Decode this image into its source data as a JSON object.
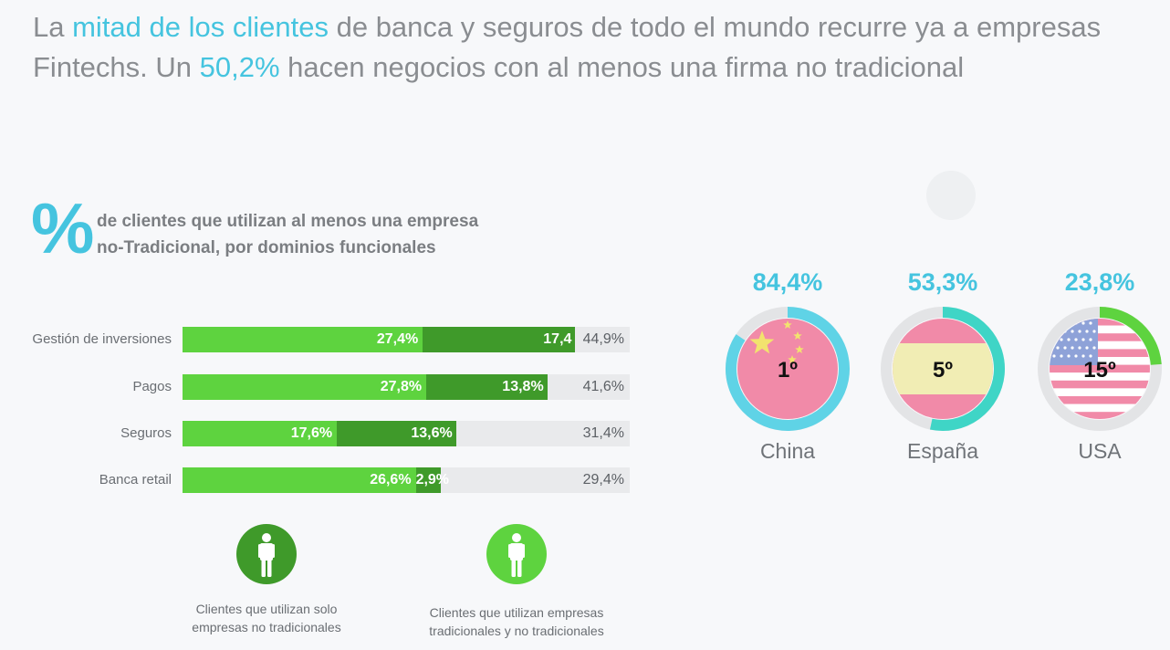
{
  "headline": {
    "part1": "La ",
    "highlight1": "mitad de los clientes",
    "part2": " de banca y seguros de todo el mundo recurre ya a empresas Fintechs. Un ",
    "highlight2": "50,2%",
    "part3": " hacen negocios con al menos una firma no tradicional"
  },
  "subtitle": {
    "symbol": "%",
    "line1": "de clientes que utilizan al menos una empresa",
    "line2": "no-Tradicional, por dominios funcionales"
  },
  "colors": {
    "accent": "#45c4df",
    "light_green": "#5ed33f",
    "dark_green": "#3f9a2a",
    "track": "#e9eaec"
  },
  "chart_data": [
    {
      "type": "bar",
      "stacked": true,
      "orientation": "horizontal",
      "categories": [
        "Gestión de inversiones",
        "Pagos",
        "Seguros",
        "Banca retail"
      ],
      "series": [
        {
          "name": "Clientes que utilizan empresas tradicionales y no tradicionales",
          "values": [
            27.4,
            27.8,
            17.6,
            26.6
          ],
          "labels": [
            "27,4%",
            "27,8%",
            "17,6%",
            "26,6%"
          ],
          "color": "#5ed33f"
        },
        {
          "name": "Clientes que utilizan solo empresas no tradicionales",
          "values": [
            17.4,
            13.8,
            13.6,
            2.9
          ],
          "labels": [
            "17,4",
            "13,8%",
            "13,6%",
            "2,9%"
          ],
          "color": "#3f9a2a"
        }
      ],
      "totals": [
        "44,9%",
        "41,6%",
        "31,4%",
        "29,4%"
      ],
      "xlim": [
        0,
        51
      ]
    },
    {
      "type": "pie",
      "style": "donut-progress",
      "categories": [
        "China",
        "España",
        "USA"
      ],
      "values": [
        84.4,
        53.3,
        23.8
      ],
      "value_labels": [
        "84,4%",
        "53,3%",
        "23,8%"
      ],
      "ranks": [
        "1º",
        "5º",
        "15º"
      ],
      "ring_colors": [
        "#5fd3e6",
        "#3fd5c6",
        "#5ed33f"
      ]
    }
  ],
  "legend": [
    {
      "icon": "person-icon",
      "color": "#3f9a2a",
      "text_line1": "Clientes que utilizan solo",
      "text_line2": "empresas no tradicionales"
    },
    {
      "icon": "person-icon",
      "color": "#5ed33f",
      "text_line1": "Clientes que utilizan empresas",
      "text_line2": "tradicionales y no tradicionales"
    }
  ]
}
